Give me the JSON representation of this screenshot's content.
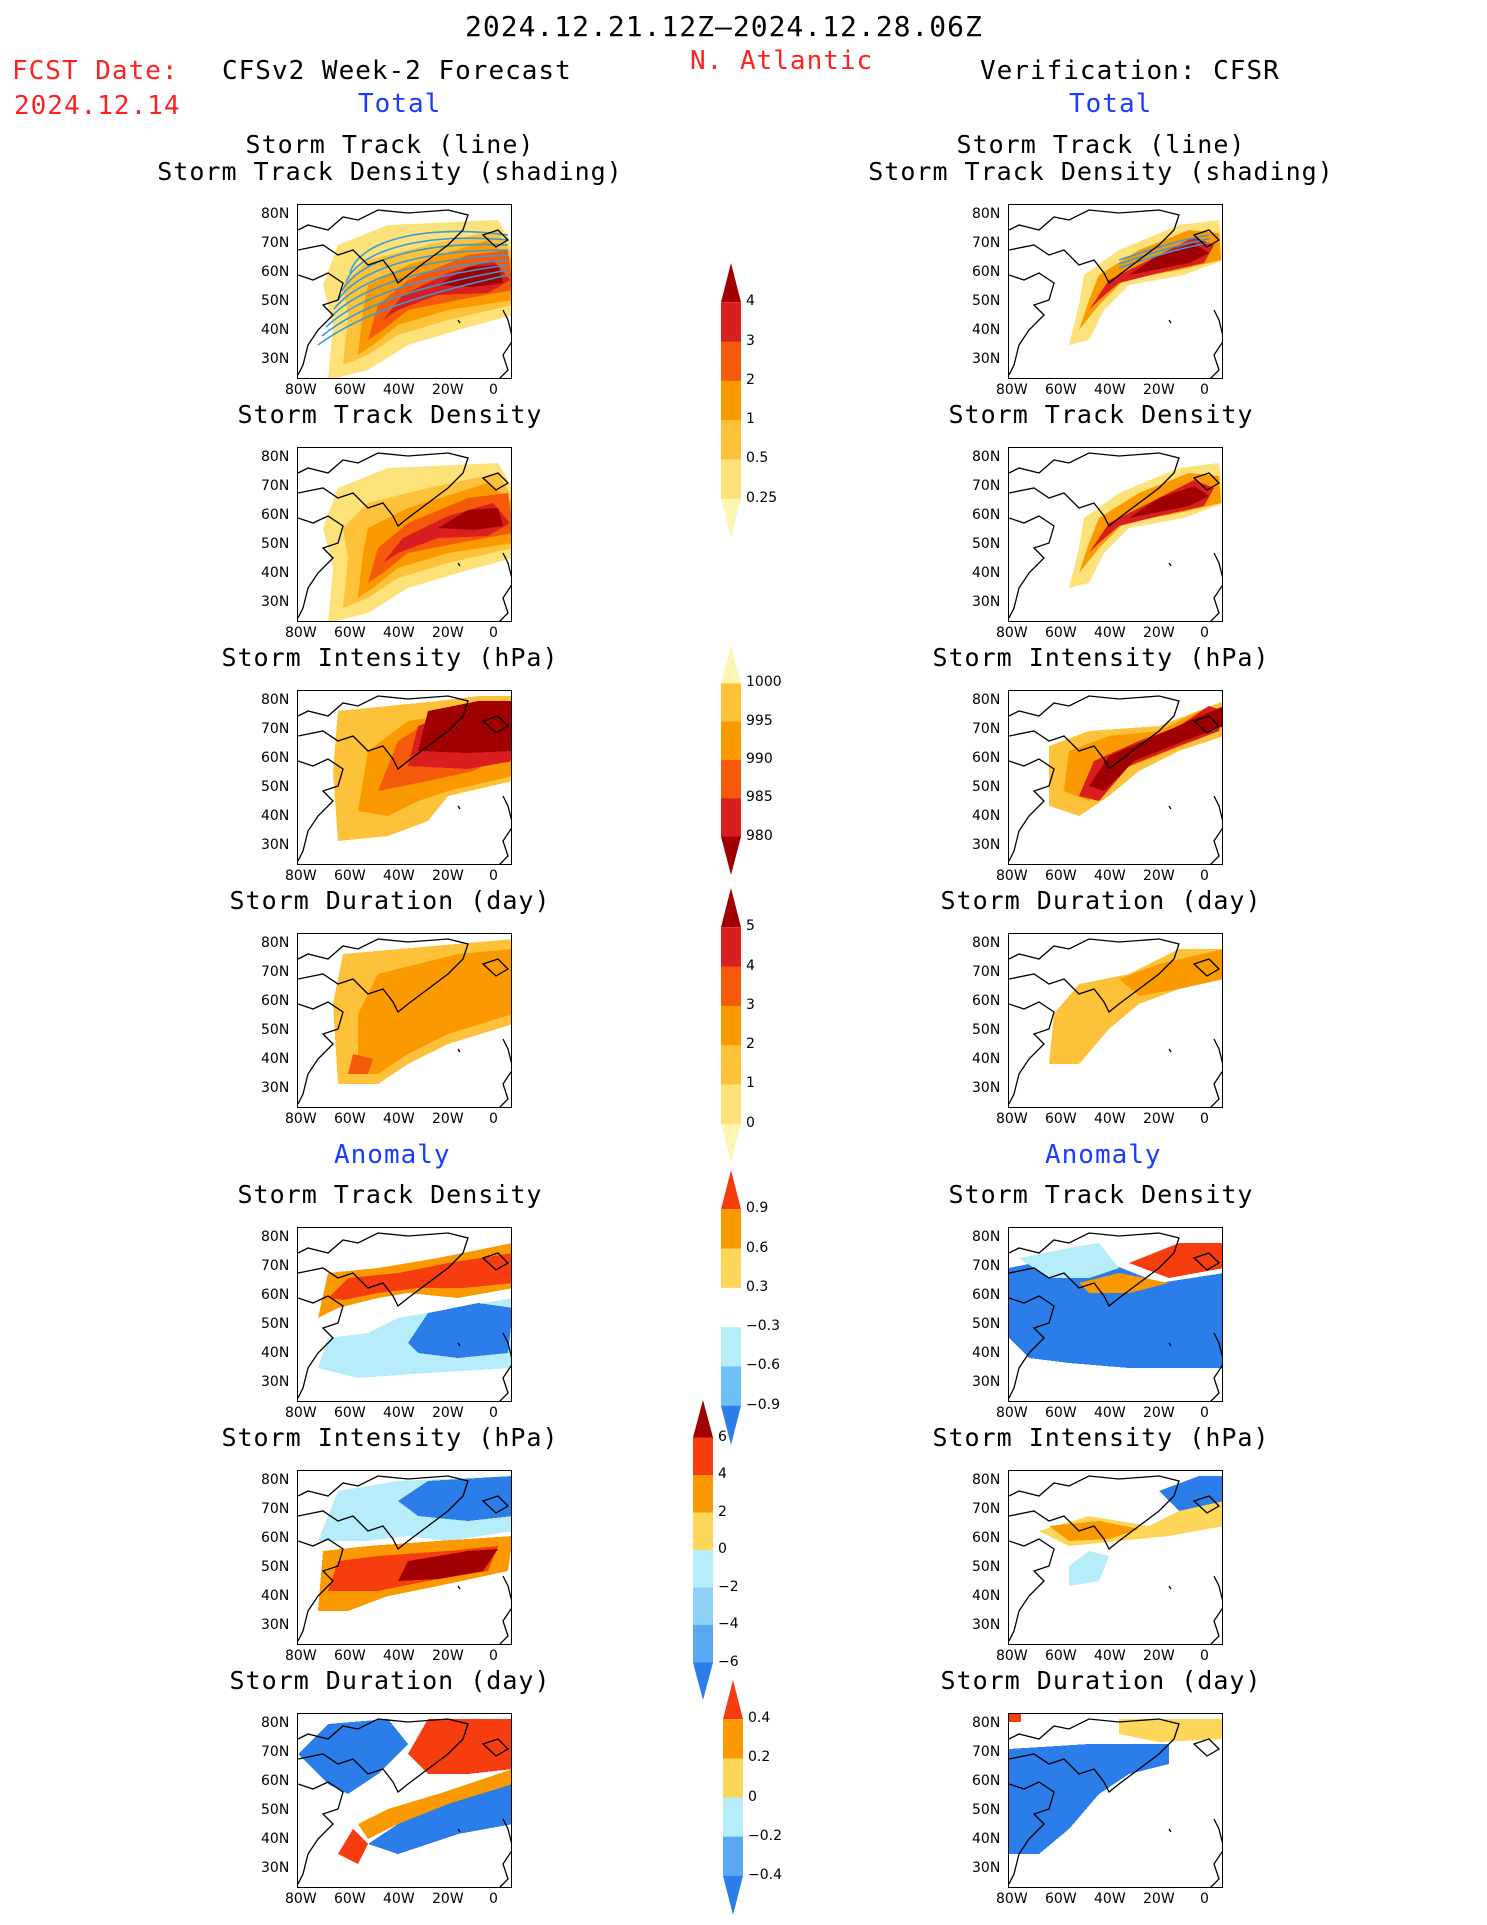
{
  "header": {
    "period": "2024.12.21.12Z–2024.12.28.06Z",
    "region": "N. Atlantic",
    "fcst_label": "FCST Date:",
    "fcst_date": "2024.12.14",
    "left_title": "CFSv2 Week-2 Forecast",
    "right_title": "Verification: CFSR",
    "total_left": "Total",
    "total_right": "Total",
    "anomaly_left": "Anomaly",
    "anomaly_right": "Anomaly"
  },
  "panel_titles": {
    "track_line": "Storm Track (line)",
    "track_density_shading": "Storm Track Density (shading)",
    "track_density": "Storm Track Density",
    "intensity": "Storm Intensity (hPa)",
    "duration": "Storm Duration (day)"
  },
  "axes": {
    "lat_ticks": [
      "80N",
      "70N",
      "60N",
      "50N",
      "40N",
      "30N"
    ],
    "lon_ticks": [
      "80W",
      "60W",
      "40W",
      "20W",
      "0"
    ]
  },
  "colorbars": {
    "density": {
      "labels": [
        "4",
        "3",
        "2",
        "1",
        "0.5",
        "0.25"
      ],
      "colors": [
        "#a00000",
        "#d81e1e",
        "#f55a0a",
        "#fb9a00",
        "#fdc23a",
        "#fde27a",
        "#fff5b5"
      ]
    },
    "intensity": {
      "labels": [
        "1000",
        "995",
        "990",
        "985",
        "980"
      ],
      "colors": [
        "#fff5b5",
        "#fdc23a",
        "#fb9a00",
        "#f55a0a",
        "#d81e1e",
        "#a00000"
      ]
    },
    "duration": {
      "labels": [
        "5",
        "4",
        "3",
        "2",
        "1",
        "0"
      ],
      "colors": [
        "#a00000",
        "#d81e1e",
        "#f55a0a",
        "#fb9a00",
        "#fdc23a",
        "#fde27a",
        "#fff5b5"
      ]
    },
    "anom_density": {
      "labels": [
        "0.9",
        "0.6",
        "0.3",
        "−0.3",
        "−0.6",
        "−0.9"
      ],
      "colors": [
        "#f53d10",
        "#fb9a00",
        "#fdd65a",
        "#ffffff",
        "#b7ecfa",
        "#6cc0f5",
        "#2b7de9"
      ]
    },
    "anom_intensity": {
      "labels": [
        "6",
        "4",
        "2",
        "0",
        "−2",
        "−4",
        "−6"
      ],
      "colors": [
        "#a00000",
        "#f53d10",
        "#fb9a00",
        "#fdd65a",
        "#b7ecfa",
        "#8ed2f7",
        "#5aa9f0",
        "#2b7de9"
      ]
    },
    "anom_duration": {
      "labels": [
        "0.4",
        "0.2",
        "0",
        "−0.2",
        "−0.4"
      ],
      "colors": [
        "#f53d10",
        "#fb9a00",
        "#fdd65a",
        "#b7ecfa",
        "#5aa9f0",
        "#2b7de9"
      ]
    }
  }
}
